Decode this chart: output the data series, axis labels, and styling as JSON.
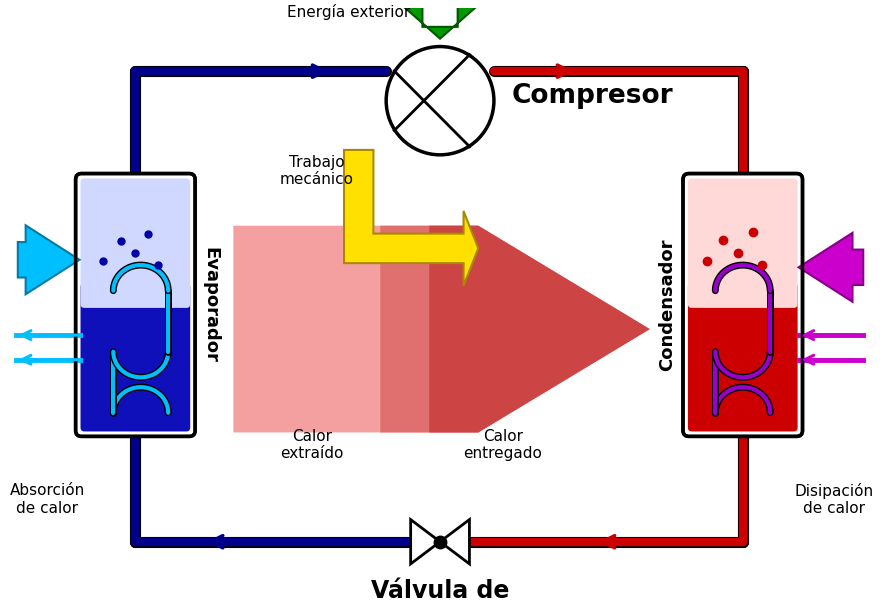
{
  "bg_color": "#ffffff",
  "blue": "#00008B",
  "dark_blue": "#00008B",
  "red": "#CC0000",
  "cyan": "#00BFFF",
  "cyan_dark": "#007BA7",
  "green": "#008000",
  "magenta": "#CC00CC",
  "yellow": "#FFE000",
  "salmon_light": "#F4A0A0",
  "salmon_dark": "#D94040",
  "pipe_lw": 6,
  "labels": {
    "energia": "Energía exterior",
    "compresor": "Compresor",
    "trabajo": "Trabajo\nmecánico",
    "calor_extraido": "Calor\nextraído",
    "calor_entregado": "Calor\nentregado",
    "evaporador": "Evaporador",
    "condensador": "Condensador",
    "absorcion": "Absorción\nde calor",
    "disipacion": "Disipación\nde calor",
    "valvula": "Válvula de"
  }
}
